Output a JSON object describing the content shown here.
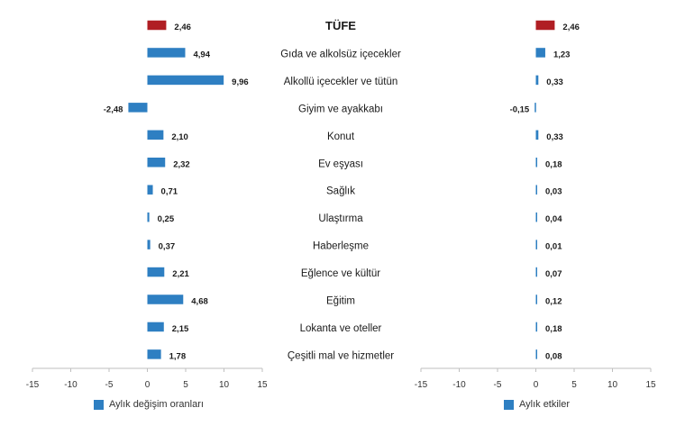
{
  "colors": {
    "blue": "#2e7fc2",
    "red": "#b01e23",
    "axis": "#bfbfbf",
    "text": "#333333",
    "label": "#1a1a1a"
  },
  "chart_data": [
    {
      "type": "bar",
      "orientation": "horizontal",
      "title": "",
      "xlabel": "",
      "ylabel": "",
      "xlim": [
        -15,
        15
      ],
      "xticks": [
        -15,
        -10,
        -5,
        0,
        5,
        10,
        15
      ],
      "grid": false,
      "legend_position": "bottom-left",
      "categories": [
        "TÜFE",
        "Gıda ve alkolsüz içecekler",
        "Alkollü içecekler ve tütün",
        "Giyim ve ayakkabı",
        "Konut",
        "Ev eşyası",
        "Sağlık",
        "Ulaştırma",
        "Haberleşme",
        "Eğlence ve kültür",
        "Eğitim",
        "Lokanta ve oteller",
        "Çeşitli mal ve hizmetler"
      ],
      "series": [
        {
          "name": "Aylık değişim oranları",
          "values": [
            2.46,
            4.94,
            9.96,
            -2.48,
            2.1,
            2.32,
            0.71,
            0.25,
            0.37,
            2.21,
            4.68,
            2.15,
            1.78
          ],
          "labels": [
            "2,46",
            "4,94",
            "9,96",
            "-2,48",
            "2,10",
            "2,32",
            "0,71",
            "0,25",
            "0,37",
            "2,21",
            "4,68",
            "2,15",
            "1,78"
          ],
          "highlight_first": true
        }
      ]
    },
    {
      "type": "bar",
      "orientation": "horizontal",
      "title": "",
      "xlabel": "",
      "ylabel": "",
      "xlim": [
        -15,
        15
      ],
      "xticks": [
        -15,
        -10,
        -5,
        0,
        5,
        10,
        15
      ],
      "grid": false,
      "legend_position": "bottom-center",
      "categories": [
        "TÜFE",
        "Gıda ve alkolsüz içecekler",
        "Alkollü içecekler ve tütün",
        "Giyim ve ayakkabı",
        "Konut",
        "Ev eşyası",
        "Sağlık",
        "Ulaştırma",
        "Haberleşme",
        "Eğlence ve kültür",
        "Eğitim",
        "Lokanta ve oteller",
        "Çeşitli mal ve hizmetler"
      ],
      "series": [
        {
          "name": "Aylık etkiler",
          "values": [
            2.46,
            1.23,
            0.33,
            -0.15,
            0.33,
            0.18,
            0.03,
            0.04,
            0.01,
            0.07,
            0.12,
            0.18,
            0.08
          ],
          "labels": [
            "2,46",
            "1,23",
            "0,33",
            "-0,15",
            "0,33",
            "0,18",
            "0,03",
            "0,04",
            "0,01",
            "0,07",
            "0,12",
            "0,18",
            "0,08"
          ],
          "highlight_first": true
        }
      ]
    }
  ]
}
